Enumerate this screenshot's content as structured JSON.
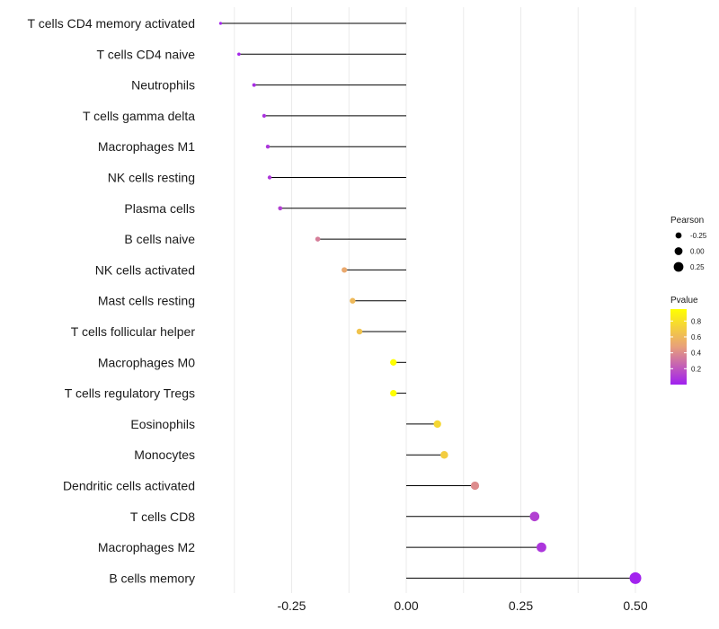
{
  "chart_data": {
    "type": "lollipop",
    "title": "",
    "xlabel": "",
    "ylabel": "",
    "xlim": [
      -0.45,
      0.52
    ],
    "x_ticks": [
      -0.25,
      0.0,
      0.25,
      0.5
    ],
    "x_tick_labels": [
      "-0.25",
      "0.00",
      "0.25",
      "0.50"
    ],
    "grid": true,
    "categories": [
      "T cells CD4 memory activated",
      "T cells CD4 naive",
      "Neutrophils",
      "T cells gamma delta",
      "Macrophages M1",
      "NK cells resting",
      "Plasma cells",
      "B cells naive",
      "NK cells activated",
      "Mast cells resting",
      "T cells follicular helper",
      "Macrophages M0",
      "T cells regulatory  Tregs ",
      "Eosinophils",
      "Monocytes",
      "Dendritic cells activated",
      "T cells CD8",
      "Macrophages M2",
      "B cells memory"
    ],
    "pearson": [
      -0.405,
      -0.365,
      -0.332,
      -0.31,
      -0.302,
      -0.298,
      -0.275,
      -0.193,
      -0.135,
      -0.117,
      -0.102,
      -0.028,
      -0.028,
      0.068,
      0.083,
      0.15,
      0.28,
      0.295,
      0.5
    ],
    "pvalue": [
      0.02,
      0.03,
      0.05,
      0.07,
      0.08,
      0.09,
      0.12,
      0.35,
      0.52,
      0.6,
      0.65,
      0.95,
      0.95,
      0.75,
      0.7,
      0.4,
      0.12,
      0.08,
      0.01
    ],
    "size_legend": {
      "title": "Pearson",
      "labels": [
        "-0.25",
        "0.00",
        "0.25"
      ],
      "values": [
        -0.25,
        0.0,
        0.25
      ]
    },
    "color_legend": {
      "title": "Pvalue",
      "labels": [
        "0.8",
        "0.6",
        "0.4",
        "0.2"
      ],
      "values": [
        0.8,
        0.6,
        0.4,
        0.2
      ],
      "range": [
        0.0,
        0.95
      ],
      "low_color": "#a020f0",
      "mid_color": "#e8a07a",
      "high_color": "#ffff00"
    }
  }
}
